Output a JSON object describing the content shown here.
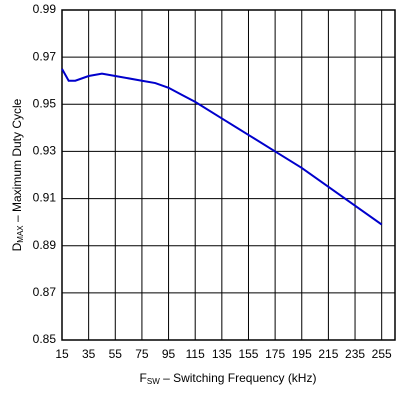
{
  "chart_data": {
    "type": "line",
    "xlabel": {
      "main": "F",
      "sub": "SW",
      "rest": " – Switching Frequency (kHz)"
    },
    "ylabel": {
      "main": "D",
      "sub": "MAX",
      "rest": " – Maximum Duty Cycle"
    },
    "x": [
      15,
      20,
      25,
      35,
      45,
      55,
      75,
      85,
      95,
      105,
      115,
      135,
      155,
      175,
      195,
      215,
      235,
      255
    ],
    "series": [
      {
        "color": "#0000cc",
        "values": [
          0.965,
          0.96,
          0.96,
          0.962,
          0.963,
          0.962,
          0.96,
          0.959,
          0.957,
          0.954,
          0.951,
          0.944,
          0.937,
          0.93,
          0.923,
          0.915,
          0.907,
          0.899
        ]
      }
    ],
    "xlim": [
      15,
      265
    ],
    "xticks": [
      15,
      35,
      55,
      75,
      95,
      115,
      135,
      155,
      175,
      195,
      215,
      235,
      255
    ],
    "ylim": [
      0.85,
      0.99
    ],
    "yticks": [
      0.85,
      0.87,
      0.89,
      0.91,
      0.93,
      0.95,
      0.97,
      0.99
    ],
    "grid": true
  }
}
